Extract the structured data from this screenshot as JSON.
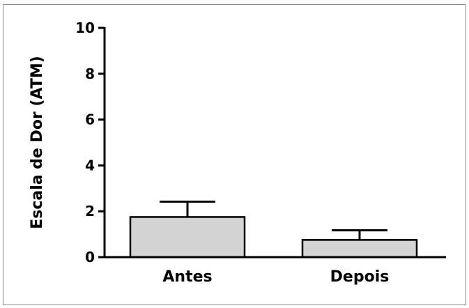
{
  "chart_data": {
    "type": "bar",
    "title": "",
    "xlabel": "",
    "ylabel": "Escala de Dor (ATM)",
    "categories": [
      "Antes",
      "Depois"
    ],
    "values": [
      1.75,
      0.75
    ],
    "error_upper": [
      2.42,
      1.17
    ],
    "ylim": [
      0,
      10
    ],
    "yticks": [
      "0",
      "2",
      "4",
      "6",
      "8",
      "10"
    ],
    "bar_color": "#d3d3d3",
    "grid": false,
    "legend": "none"
  }
}
